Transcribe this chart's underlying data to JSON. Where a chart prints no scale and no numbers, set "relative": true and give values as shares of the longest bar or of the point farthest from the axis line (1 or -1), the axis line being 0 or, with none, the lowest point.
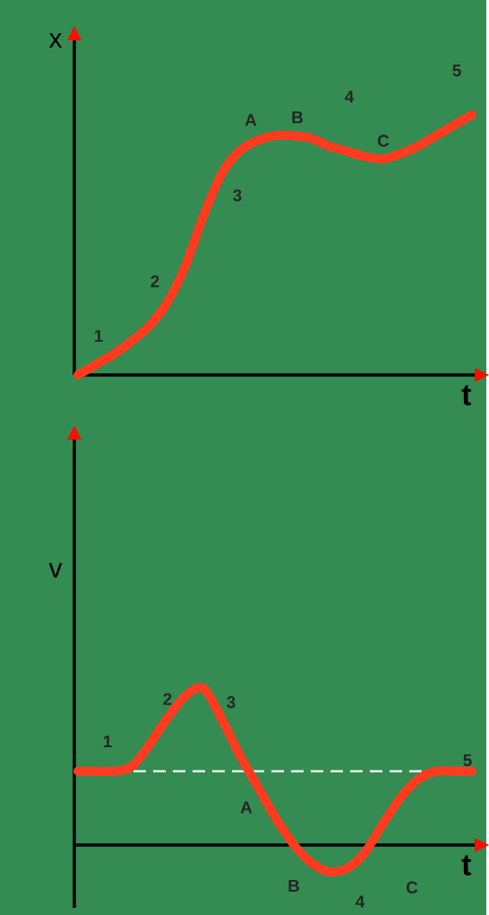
{
  "chart_data": [
    {
      "type": "line",
      "relative": true,
      "xlabel": "t",
      "ylabel": "x",
      "categories": [
        null,
        null,
        null,
        null,
        null,
        null,
        null,
        null,
        null,
        null,
        null,
        null,
        null,
        null,
        null,
        null,
        null,
        null,
        null,
        null,
        null,
        null,
        null
      ],
      "series": [
        {
          "color": "#ff3b1f",
          "values": [
            0,
            0.04,
            0.08,
            0.13,
            0.19,
            0.28,
            0.42,
            0.61,
            0.77,
            0.86,
            0.9,
            0.92,
            0.92,
            0.91,
            0.88,
            0.86,
            0.84,
            0.83,
            0.85,
            0.88,
            0.92,
            0.96,
            1
          ]
        }
      ],
      "annotations": [
        "1",
        "2",
        "3",
        "A",
        "B",
        "4",
        "C",
        "5"
      ],
      "marker": "none",
      "line_style": "solid"
    },
    {
      "type": "line",
      "relative": true,
      "xlabel": "t",
      "ylabel": "v",
      "categories": [
        null,
        null,
        null,
        null,
        null,
        null,
        null,
        null,
        null,
        null,
        null,
        null,
        null,
        null,
        null,
        null,
        null,
        null,
        null,
        null,
        null,
        null,
        null
      ],
      "series": [
        {
          "color": "#ff3b1f",
          "values": [
            0.47,
            0.47,
            0.47,
            0.5,
            0.64,
            0.81,
            0.95,
            1,
            0.81,
            0.58,
            0.38,
            0.18,
            0.01,
            -0.11,
            -0.17,
            -0.15,
            -0.05,
            0.13,
            0.3,
            0.42,
            0.47,
            0.47,
            0.47
          ]
        }
      ],
      "ref_lines": [
        {
          "axis": "y",
          "value": 0.47,
          "color": "#e6f4ee",
          "line_style": "dashed"
        }
      ],
      "annotations": [
        "1",
        "2",
        "3",
        "A",
        "B",
        "C",
        "4",
        "5"
      ],
      "marker": "none",
      "line_style": "solid"
    }
  ]
}
